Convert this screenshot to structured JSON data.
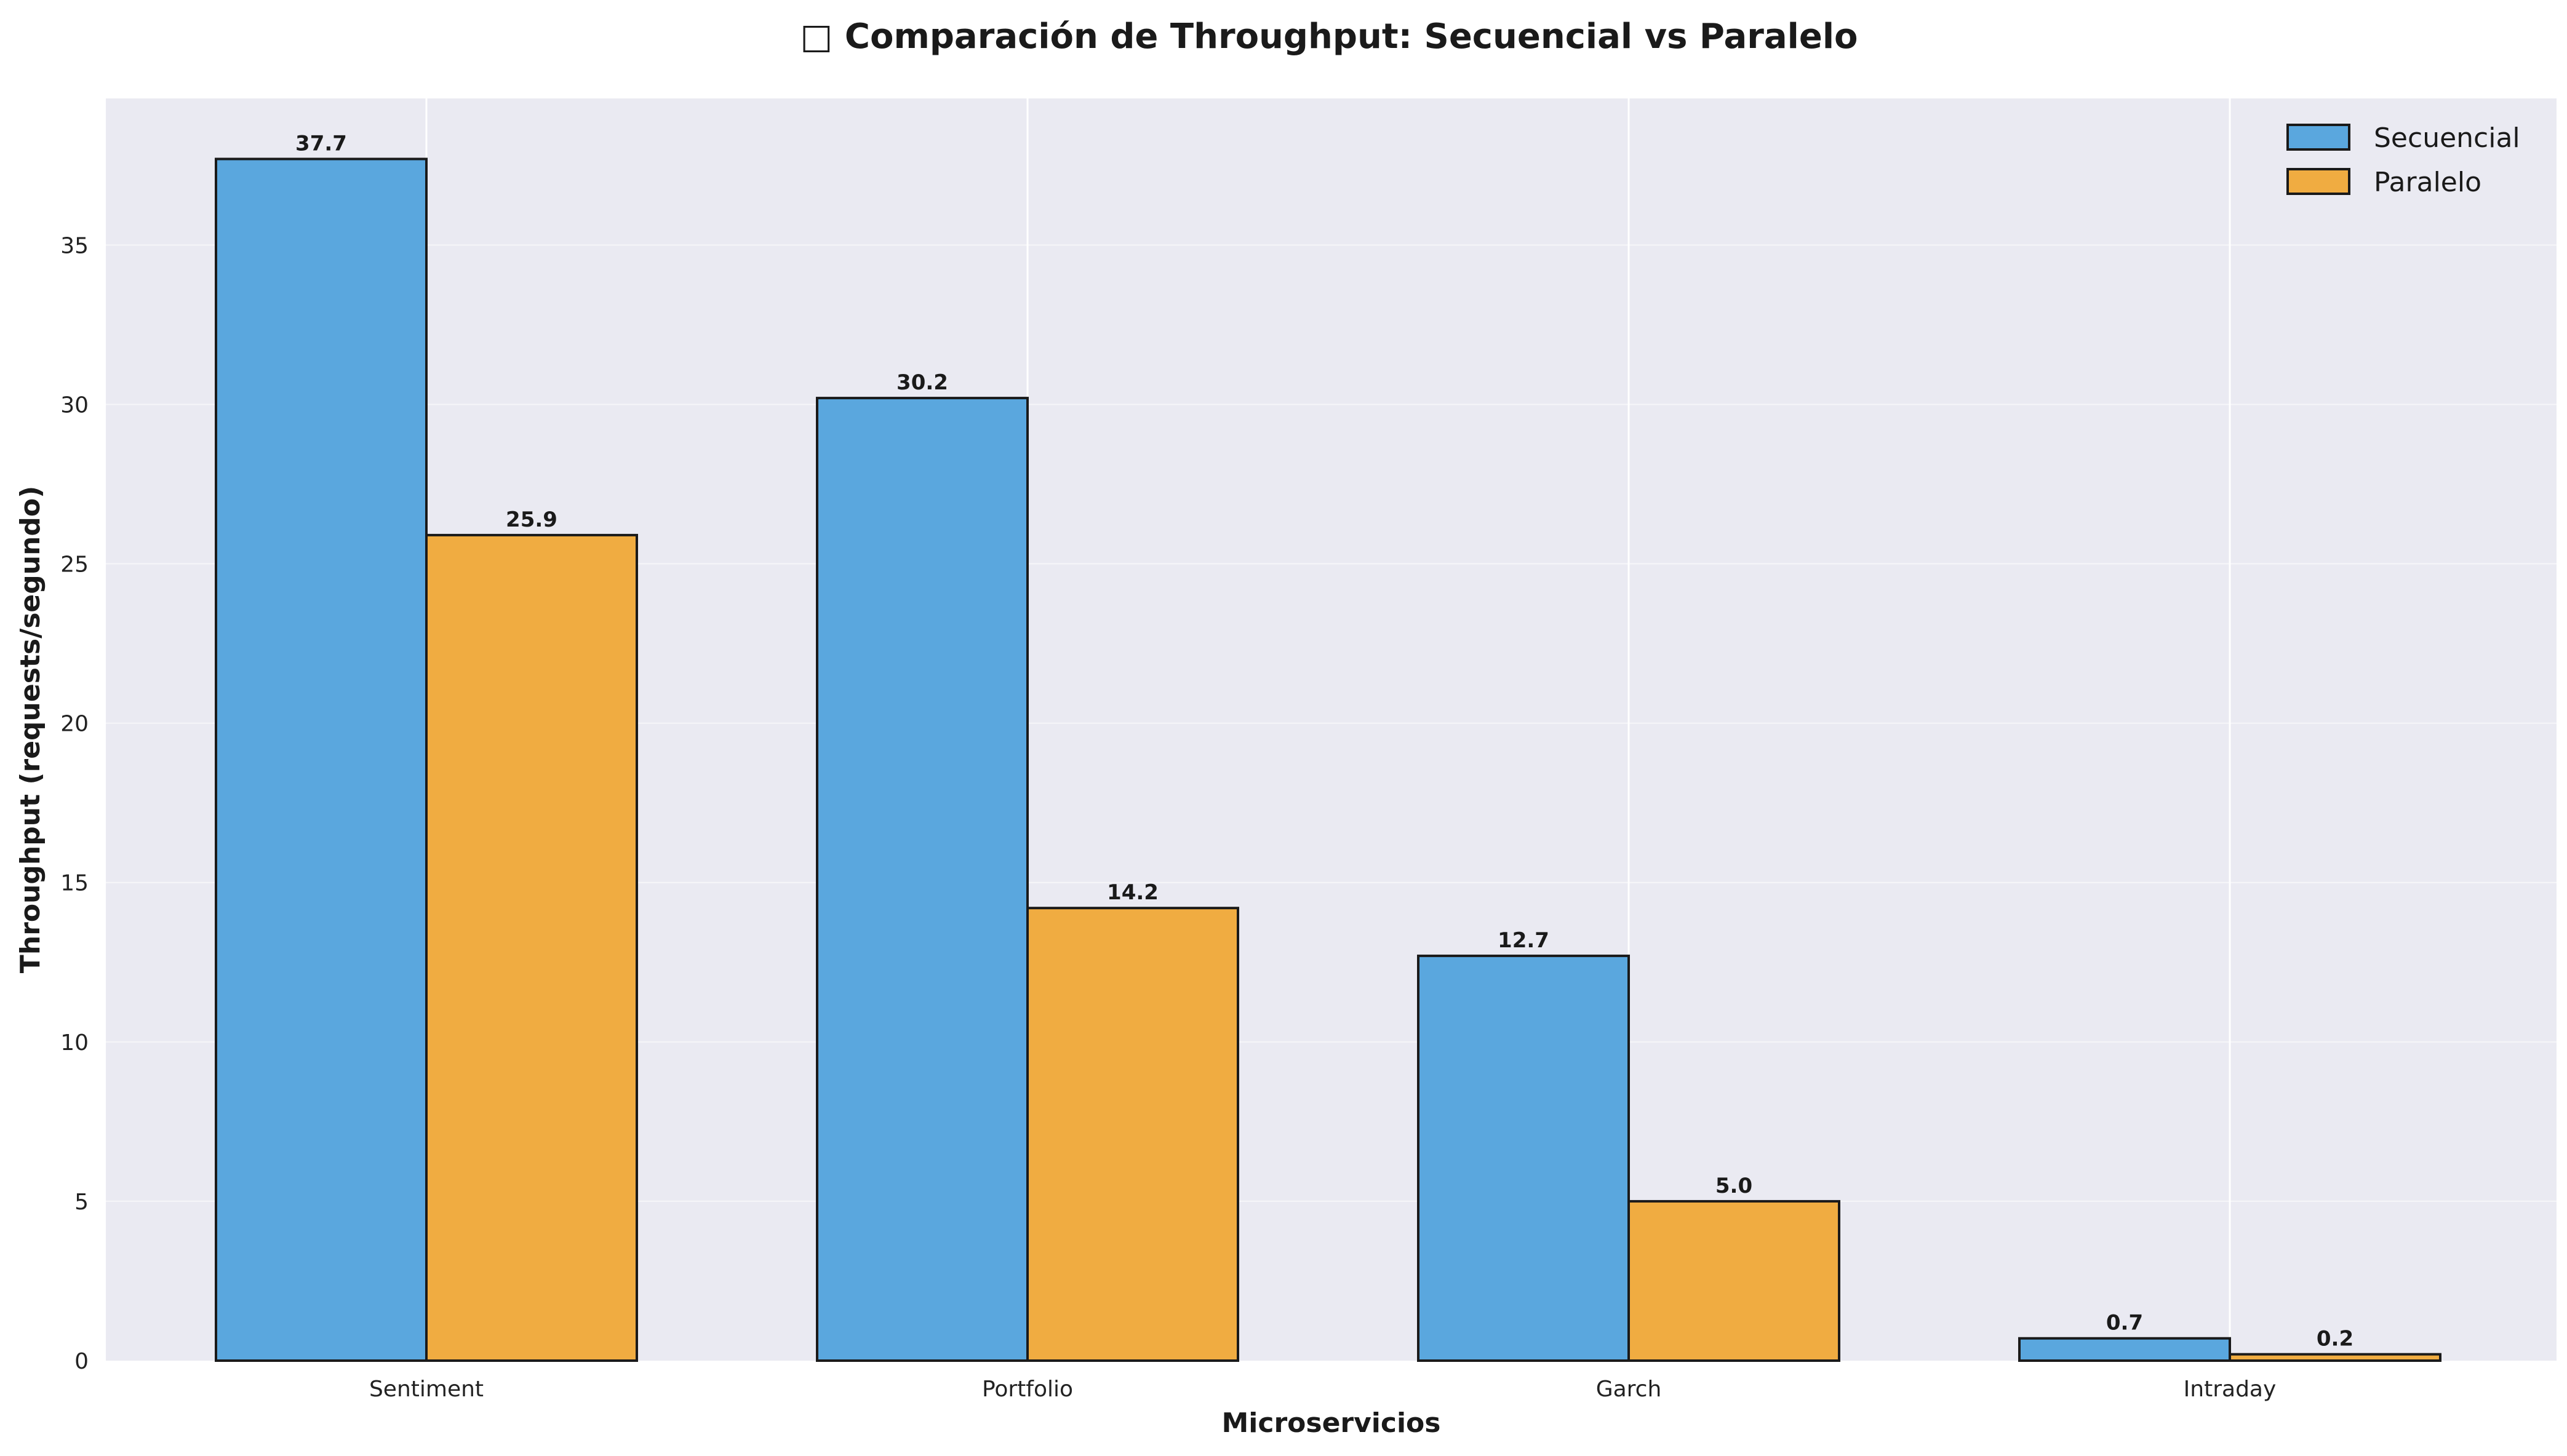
{
  "chart_data": {
    "type": "bar",
    "title": "Comparación de Throughput: Secuencial vs Paralelo",
    "title_icon": "missing-glyph-icon",
    "xlabel": "Microservicios",
    "ylabel": "Throughput (requests/segundo)",
    "categories": [
      "Sentiment",
      "Portfolio",
      "Garch",
      "Intraday"
    ],
    "series": [
      {
        "name": "Secuencial",
        "values": [
          37.7,
          30.2,
          12.7,
          0.7
        ],
        "labels": [
          "37.7",
          "30.2",
          "12.7",
          "0.7"
        ],
        "color": "#5aa7de"
      },
      {
        "name": "Paralelo",
        "values": [
          25.9,
          14.2,
          5.0,
          0.2
        ],
        "labels": [
          "25.9",
          "14.2",
          "5.0",
          "0.2"
        ],
        "color": "#f0ac41"
      }
    ],
    "ylim": [
      0,
      39.6
    ],
    "yticks": [
      0,
      5,
      10,
      15,
      20,
      25,
      30,
      35
    ],
    "grid": true,
    "legend": "top-right",
    "colors": {
      "plot_background": "#eaeaf2",
      "bar_edge": "#1a1a1a",
      "grid": "#ffffff"
    }
  }
}
